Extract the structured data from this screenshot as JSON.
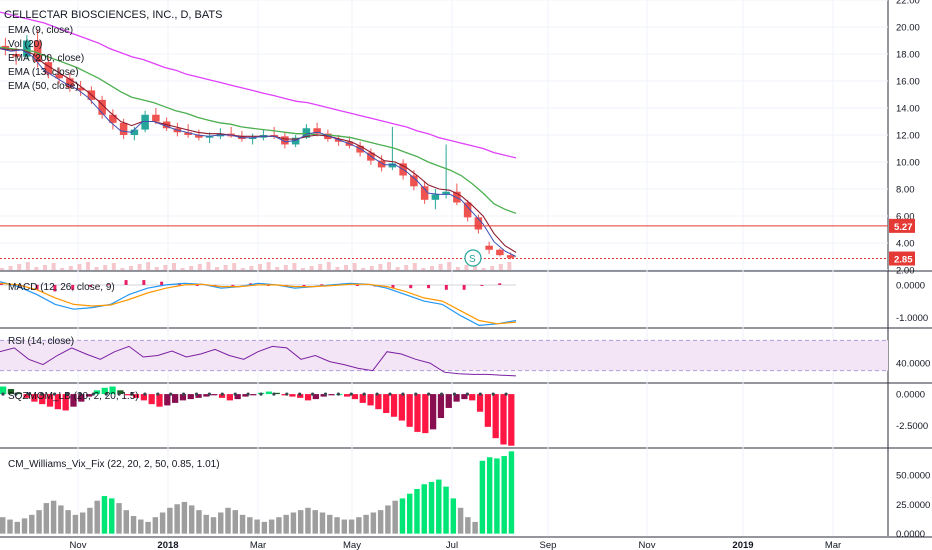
{
  "chart_data": {
    "type": "candlestick",
    "x_axis": {
      "ticks": [
        "Nov",
        "2018",
        "Mar",
        "May",
        "Jul",
        "Sep",
        "Nov",
        "2019",
        "Mar"
      ]
    },
    "panels": [
      {
        "id": "price",
        "title": "CELLECTAR BIOSCIENCES, INC., D, BATS",
        "legend": [
          "EMA (9, close)",
          "Vol (20)",
          "EMA (200, close)",
          "EMA (13, close)",
          "EMA (50, close)"
        ],
        "y_ticks": [
          "22.00",
          "20.00",
          "18.00",
          "16.00",
          "14.00",
          "12.00",
          "10.00",
          "8.00",
          "6.00",
          "4.00",
          "2.00"
        ],
        "ylim": [
          2,
          22
        ],
        "price_lines": [
          {
            "label": "5.27",
            "value": 5.27,
            "color": "#e53935"
          },
          {
            "label": "2.85",
            "value": 2.85,
            "color": "#e53935"
          }
        ],
        "marker": "S",
        "ohlc_sampled": [
          [
            18.6,
            19.2,
            17.9,
            18.3
          ],
          [
            18.0,
            18.5,
            17.2,
            17.8
          ],
          [
            17.8,
            19.4,
            17.6,
            19.0
          ],
          [
            19.0,
            19.8,
            17.0,
            17.4
          ],
          [
            17.4,
            17.9,
            16.2,
            16.5
          ],
          [
            16.5,
            17.0,
            15.8,
            16.2
          ],
          [
            16.2,
            16.6,
            15.2,
            15.5
          ],
          [
            15.5,
            16.0,
            14.9,
            15.3
          ],
          [
            15.3,
            15.6,
            14.3,
            14.6
          ],
          [
            14.6,
            14.9,
            13.2,
            13.5
          ],
          [
            13.5,
            13.9,
            12.4,
            12.9
          ],
          [
            12.9,
            13.2,
            11.7,
            12.0
          ],
          [
            12.0,
            12.6,
            11.6,
            12.4
          ],
          [
            12.4,
            13.8,
            12.2,
            13.5
          ],
          [
            13.5,
            14.0,
            12.8,
            13.0
          ],
          [
            13.0,
            13.3,
            12.3,
            12.5
          ],
          [
            12.5,
            12.9,
            11.9,
            12.2
          ],
          [
            12.2,
            12.8,
            11.8,
            12.0
          ],
          [
            12.0,
            12.4,
            11.6,
            11.8
          ],
          [
            11.8,
            12.2,
            11.4,
            11.9
          ],
          [
            11.9,
            12.5,
            11.7,
            12.1
          ],
          [
            12.1,
            12.6,
            11.8,
            11.9
          ],
          [
            11.9,
            12.3,
            11.5,
            11.7
          ],
          [
            11.7,
            12.1,
            11.3,
            11.8
          ],
          [
            11.8,
            12.4,
            11.6,
            12.0
          ],
          [
            12.0,
            12.6,
            11.7,
            11.9
          ],
          [
            11.9,
            12.2,
            11.0,
            11.3
          ],
          [
            11.3,
            12.0,
            11.1,
            11.8
          ],
          [
            11.8,
            12.8,
            11.7,
            12.5
          ],
          [
            12.5,
            12.9,
            11.9,
            12.1
          ],
          [
            12.1,
            12.4,
            11.5,
            11.7
          ],
          [
            11.7,
            12.0,
            11.2,
            11.5
          ],
          [
            11.5,
            11.9,
            11.0,
            11.2
          ],
          [
            11.2,
            11.5,
            10.4,
            10.7
          ],
          [
            10.7,
            11.0,
            9.8,
            10.1
          ],
          [
            10.1,
            10.5,
            9.3,
            9.6
          ],
          [
            9.6,
            12.6,
            9.4,
            9.9
          ],
          [
            9.9,
            10.2,
            8.7,
            9.0
          ],
          [
            9.0,
            9.4,
            7.9,
            8.2
          ],
          [
            8.2,
            8.6,
            6.9,
            7.2
          ],
          [
            7.2,
            8.0,
            6.5,
            7.6
          ],
          [
            7.6,
            11.3,
            7.3,
            7.8
          ],
          [
            7.8,
            8.4,
            6.8,
            7.0
          ],
          [
            7.0,
            7.2,
            5.6,
            5.9
          ],
          [
            5.9,
            6.1,
            4.7,
            5.0
          ],
          [
            3.8,
            4.1,
            3.2,
            3.5
          ],
          [
            3.5,
            3.6,
            3.0,
            3.1
          ],
          [
            3.1,
            3.3,
            2.8,
            2.9
          ]
        ],
        "ema_9": [
          18.4,
          18.2,
          18.3,
          17.8,
          16.8,
          16.3,
          15.8,
          15.4,
          14.8,
          13.9,
          13.0,
          12.3,
          12.2,
          13.0,
          13.0,
          12.7,
          12.4,
          12.2,
          12.0,
          11.9,
          12.0,
          12.0,
          11.8,
          11.8,
          11.9,
          11.9,
          11.5,
          11.6,
          12.1,
          12.2,
          11.9,
          11.6,
          11.3,
          10.9,
          10.3,
          9.8,
          9.8,
          9.3,
          8.6,
          7.7,
          7.6,
          7.6,
          7.2,
          6.3,
          5.4,
          4.1,
          3.4,
          3.0
        ],
        "ema_13": [
          18.4,
          18.3,
          18.3,
          18.0,
          17.3,
          16.8,
          16.3,
          15.8,
          15.2,
          14.5,
          13.7,
          13.0,
          12.7,
          13.0,
          13.0,
          12.8,
          12.6,
          12.4,
          12.2,
          12.1,
          12.1,
          12.0,
          11.9,
          11.9,
          11.9,
          11.9,
          11.7,
          11.7,
          11.9,
          12.0,
          11.9,
          11.7,
          11.5,
          11.1,
          10.6,
          10.1,
          10.0,
          9.6,
          9.0,
          8.3,
          8.0,
          7.9,
          7.5,
          6.8,
          6.0,
          4.7,
          3.8,
          3.3
        ],
        "ema_50": [
          18.5,
          18.4,
          18.3,
          18.2,
          17.9,
          17.6,
          17.3,
          17.0,
          16.6,
          16.2,
          15.7,
          15.2,
          14.8,
          14.6,
          14.4,
          14.1,
          13.8,
          13.6,
          13.3,
          13.1,
          12.9,
          12.8,
          12.6,
          12.5,
          12.4,
          12.3,
          12.2,
          12.1,
          12.1,
          12.0,
          12.0,
          11.9,
          11.8,
          11.6,
          11.4,
          11.2,
          11.0,
          10.7,
          10.4,
          10.0,
          9.7,
          9.4,
          9.0,
          8.4,
          7.7,
          6.9,
          6.5,
          6.2
        ],
        "ema_200": [
          21.1,
          20.9,
          20.7,
          20.5,
          20.3,
          20.0,
          19.7,
          19.4,
          19.1,
          18.8,
          18.4,
          18.1,
          17.8,
          17.6,
          17.3,
          17.0,
          16.8,
          16.5,
          16.3,
          16.1,
          15.9,
          15.7,
          15.5,
          15.3,
          15.1,
          14.9,
          14.7,
          14.5,
          14.4,
          14.2,
          14.0,
          13.8,
          13.6,
          13.4,
          13.2,
          13.0,
          12.8,
          12.6,
          12.3,
          12.1,
          11.8,
          11.6,
          11.4,
          11.2,
          11.0,
          10.7,
          10.5,
          10.3
        ]
      },
      {
        "id": "macd",
        "title": "MACD (12, 26, close, 9)",
        "y_ticks": [
          "0.0000",
          "-1.0000"
        ],
        "ylim": [
          -1.3,
          0.4
        ],
        "macd": [
          0.1,
          -0.05,
          -0.3,
          -0.6,
          -0.75,
          -0.7,
          -0.6,
          -0.3,
          -0.1,
          0.0,
          0.05,
          0.02,
          -0.1,
          -0.05,
          0.05,
          0.0,
          -0.1,
          -0.05,
          0.0,
          0.05,
          0.02,
          -0.1,
          -0.3,
          -0.5,
          -0.6,
          -0.95,
          -1.25,
          -1.2,
          -1.1
        ],
        "signal": [
          0.05,
          0.0,
          -0.15,
          -0.4,
          -0.6,
          -0.65,
          -0.62,
          -0.45,
          -0.25,
          -0.1,
          0.0,
          0.02,
          -0.05,
          -0.05,
          0.0,
          0.0,
          -0.05,
          -0.05,
          -0.02,
          0.02,
          0.02,
          -0.05,
          -0.2,
          -0.4,
          -0.5,
          -0.8,
          -1.1,
          -1.2,
          -1.15
        ],
        "histogram": [
          0.05,
          -0.05,
          -0.15,
          -0.2,
          -0.15,
          -0.05,
          0.02,
          0.15,
          0.15,
          0.1,
          0.05,
          0.0,
          -0.05,
          0.0,
          0.05,
          0.0,
          -0.05,
          0.0,
          0.02,
          0.03,
          0.0,
          -0.05,
          -0.1,
          -0.1,
          -0.1,
          -0.15,
          -0.15,
          0.0,
          0.05
        ]
      },
      {
        "id": "rsi",
        "title": "RSI (14, close)",
        "y_ticks": [
          "40.0000"
        ],
        "ylim": [
          15,
          85
        ],
        "band": [
          30,
          70
        ],
        "values": [
          55,
          60,
          45,
          38,
          50,
          60,
          52,
          45,
          55,
          62,
          48,
          50,
          56,
          48,
          52,
          58,
          50,
          45,
          55,
          62,
          60,
          45,
          50,
          42,
          38,
          33,
          30,
          55,
          52,
          45,
          40,
          28,
          26,
          25,
          25,
          24,
          23
        ]
      },
      {
        "id": "sqz",
        "title": "SQZMOM_LB (20, 2, 20, 1.5)",
        "y_ticks": [
          "0.0000",
          "-2.5000"
        ],
        "ylim": [
          -4.2,
          0.8
        ],
        "values": [
          0.6,
          0.4,
          0.1,
          -0.3,
          -0.6,
          -0.8,
          -1.0,
          -1.2,
          -1.3,
          -1.0,
          -0.6,
          -0.2,
          0.3,
          0.5,
          0.6,
          0.3,
          -0.1,
          -0.3,
          -0.5,
          -0.8,
          -1.0,
          -0.9,
          -0.7,
          -0.5,
          -0.4,
          -0.3,
          -0.2,
          -0.1,
          -0.3,
          -0.5,
          -0.4,
          -0.2,
          -0.1,
          0.1,
          0.2,
          0.1,
          -0.1,
          -0.2,
          -0.3,
          -0.5,
          -0.4,
          -0.2,
          -0.1,
          0.0,
          -0.2,
          -0.4,
          -0.7,
          -0.9,
          -1.2,
          -1.5,
          -1.8,
          -2.1,
          -2.6,
          -3.0,
          -3.1,
          -2.8,
          -1.9,
          -1.1,
          -0.6,
          -0.4,
          -0.5,
          -1.4,
          -2.6,
          -3.5,
          -4.0,
          -4.1
        ]
      },
      {
        "id": "vix",
        "title": "CM_Williams_Vix_Fix (22, 20, 2, 50, 0.85, 1.01)",
        "y_ticks": [
          "50.0000",
          "25.0000",
          "0.0000"
        ],
        "ylim": [
          -2,
          72
        ],
        "values": [
          14,
          12,
          10,
          13,
          16,
          20,
          26,
          28,
          24,
          20,
          16,
          18,
          22,
          28,
          32,
          30,
          26,
          20,
          15,
          12,
          10,
          14,
          18,
          22,
          25,
          27,
          24,
          20,
          16,
          14,
          18,
          22,
          20,
          16,
          14,
          12,
          10,
          12,
          14,
          16,
          18,
          20,
          22,
          20,
          18,
          16,
          14,
          12,
          12,
          14,
          16,
          18,
          20,
          24,
          28,
          30,
          34,
          38,
          42,
          44,
          46,
          40,
          30,
          22,
          14,
          10,
          62,
          65,
          64,
          66,
          70
        ]
      }
    ]
  }
}
